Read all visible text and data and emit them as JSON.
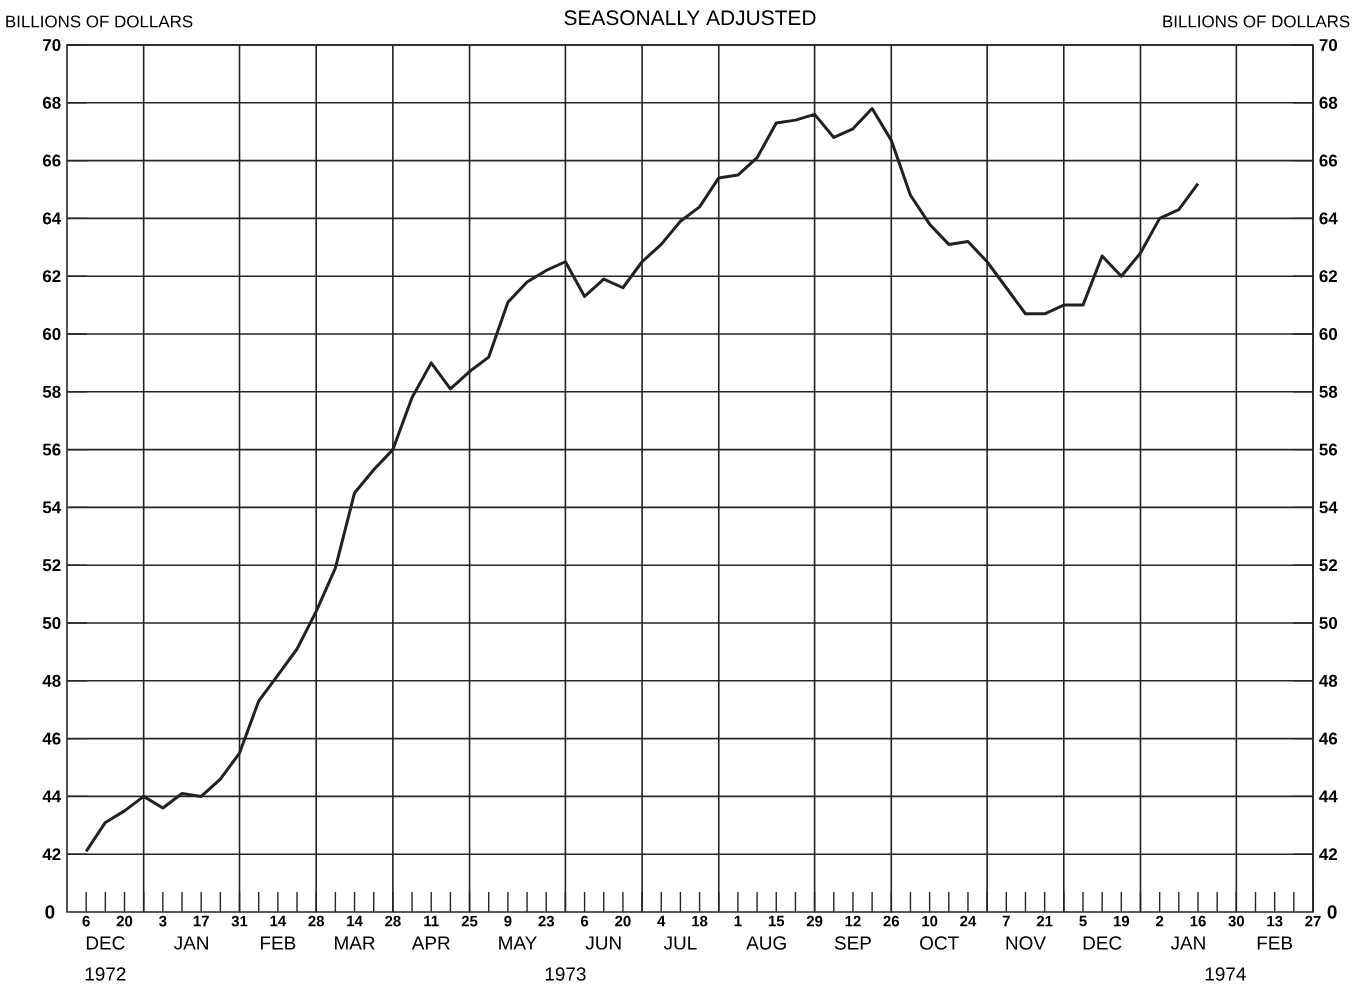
{
  "chart_data": {
    "type": "line",
    "title": "SEASONALLY ADJUSTED",
    "ylabel": "BILLIONS OF DOLLARS",
    "y2label": "BILLIONS OF DOLLARS",
    "x": [
      "1972-12-06",
      "1972-12-13",
      "1972-12-20",
      "1972-12-27",
      "1973-01-03",
      "1973-01-10",
      "1973-01-17",
      "1973-01-24",
      "1973-01-31",
      "1973-02-07",
      "1973-02-14",
      "1973-02-21",
      "1973-02-28",
      "1973-03-07",
      "1973-03-14",
      "1973-03-21",
      "1973-03-28",
      "1973-04-04",
      "1973-04-11",
      "1973-04-18",
      "1973-04-25",
      "1973-05-02",
      "1973-05-09",
      "1973-05-16",
      "1973-05-23",
      "1973-05-30",
      "1973-06-06",
      "1973-06-13",
      "1973-06-20",
      "1973-06-27",
      "1973-07-04",
      "1973-07-11",
      "1973-07-18",
      "1973-07-25",
      "1973-08-01",
      "1973-08-08",
      "1973-08-15",
      "1973-08-22",
      "1973-08-29",
      "1973-09-05",
      "1973-09-12",
      "1973-09-19",
      "1973-09-26",
      "1973-10-03",
      "1973-10-10",
      "1973-10-17",
      "1973-10-24",
      "1973-10-31",
      "1973-11-07",
      "1973-11-14",
      "1973-11-21",
      "1973-11-28",
      "1973-12-05",
      "1973-12-12",
      "1973-12-19",
      "1973-12-26",
      "1974-01-02",
      "1974-01-09",
      "1974-01-16"
    ],
    "series": [
      {
        "color": "#222222",
        "values": [
          42.1,
          43.1,
          43.5,
          44.0,
          43.6,
          44.1,
          44.0,
          44.6,
          45.5,
          47.3,
          48.2,
          49.1,
          50.4,
          51.9,
          54.5,
          55.3,
          56.0,
          57.8,
          59.0,
          58.1,
          58.7,
          59.2,
          61.1,
          61.8,
          62.2,
          62.5,
          61.3,
          61.9,
          61.6,
          62.5,
          63.1,
          63.9,
          64.4,
          65.4,
          65.5,
          66.1,
          67.3,
          67.4,
          67.6,
          66.8,
          67.1,
          67.8,
          66.7,
          64.8,
          63.8,
          63.1,
          63.2,
          62.5,
          61.6,
          60.7,
          60.7,
          61.0,
          61.0,
          62.7,
          62.0,
          62.8,
          64.0,
          64.3,
          65.2
        ]
      }
    ],
    "xlim": [
      "1972-11-29",
      "1974-02-27"
    ],
    "xticks": [
      {
        "value": "1972-12-06",
        "label": "6"
      },
      {
        "value": "1972-12-20",
        "label": "20"
      },
      {
        "value": "1973-01-03",
        "label": "3"
      },
      {
        "value": "1973-01-17",
        "label": "17"
      },
      {
        "value": "1973-01-31",
        "label": "31"
      },
      {
        "value": "1973-02-14",
        "label": "14"
      },
      {
        "value": "1973-02-28",
        "label": "28"
      },
      {
        "value": "1973-03-14",
        "label": "14"
      },
      {
        "value": "1973-03-28",
        "label": "28"
      },
      {
        "value": "1973-04-11",
        "label": "11"
      },
      {
        "value": "1973-04-25",
        "label": "25"
      },
      {
        "value": "1973-05-09",
        "label": "9"
      },
      {
        "value": "1973-05-23",
        "label": "23"
      },
      {
        "value": "1973-06-06",
        "label": "6"
      },
      {
        "value": "1973-06-20",
        "label": "20"
      },
      {
        "value": "1973-07-04",
        "label": "4"
      },
      {
        "value": "1973-07-18",
        "label": "18"
      },
      {
        "value": "1973-08-01",
        "label": "1"
      },
      {
        "value": "1973-08-15",
        "label": "15"
      },
      {
        "value": "1973-08-29",
        "label": "29"
      },
      {
        "value": "1973-09-12",
        "label": "12"
      },
      {
        "value": "1973-09-26",
        "label": "26"
      },
      {
        "value": "1973-10-10",
        "label": "10"
      },
      {
        "value": "1973-10-24",
        "label": "24"
      },
      {
        "value": "1973-11-07",
        "label": "7"
      },
      {
        "value": "1973-11-21",
        "label": "21"
      },
      {
        "value": "1973-12-05",
        "label": "5"
      },
      {
        "value": "1973-12-19",
        "label": "19"
      },
      {
        "value": "1974-01-02",
        "label": "2"
      },
      {
        "value": "1974-01-16",
        "label": "16"
      },
      {
        "value": "1974-01-30",
        "label": "30"
      },
      {
        "value": "1974-02-13",
        "label": "13"
      },
      {
        "value": "1974-02-27",
        "label": "27"
      }
    ],
    "ylim": [
      40,
      70
    ],
    "yticks": [
      42,
      44,
      46,
      48,
      50,
      52,
      54,
      56,
      58,
      60,
      62,
      64,
      66,
      68,
      70
    ],
    "y2lim": [
      40,
      70
    ],
    "y2ticks": [
      42,
      44,
      46,
      48,
      50,
      52,
      54,
      56,
      58,
      60,
      62,
      64,
      66,
      68,
      70
    ],
    "grid": "y",
    "ref_lines": [
      {
        "axis": "x",
        "value": "1972-12-27",
        "color": "#222222"
      },
      {
        "axis": "x",
        "value": "1973-01-31",
        "color": "#222222"
      },
      {
        "axis": "x",
        "value": "1973-02-28",
        "color": "#222222"
      },
      {
        "axis": "x",
        "value": "1973-03-28",
        "color": "#222222"
      },
      {
        "axis": "x",
        "value": "1973-04-25",
        "color": "#222222"
      },
      {
        "axis": "x",
        "value": "1973-05-30",
        "color": "#222222"
      },
      {
        "axis": "x",
        "value": "1973-06-27",
        "color": "#222222"
      },
      {
        "axis": "x",
        "value": "1973-07-25",
        "color": "#222222"
      },
      {
        "axis": "x",
        "value": "1973-08-29",
        "color": "#222222"
      },
      {
        "axis": "x",
        "value": "1973-09-26",
        "color": "#222222"
      },
      {
        "axis": "x",
        "value": "1973-10-31",
        "color": "#222222"
      },
      {
        "axis": "x",
        "value": "1973-11-28",
        "color": "#222222"
      },
      {
        "axis": "x",
        "value": "1973-12-26",
        "color": "#222222"
      },
      {
        "axis": "x",
        "value": "1974-01-30",
        "color": "#222222"
      }
    ],
    "annotations": [
      "DEC",
      "JAN",
      "FEB",
      "MAR",
      "APR",
      "MAY",
      "JUN",
      "JUL",
      "AUG",
      "SEP",
      "OCT",
      "NOV",
      "DEC",
      "JAN",
      "FEB",
      "1972",
      "1973",
      "1974",
      "0",
      "0"
    ],
    "marker": "none",
    "line_style": "solid"
  }
}
